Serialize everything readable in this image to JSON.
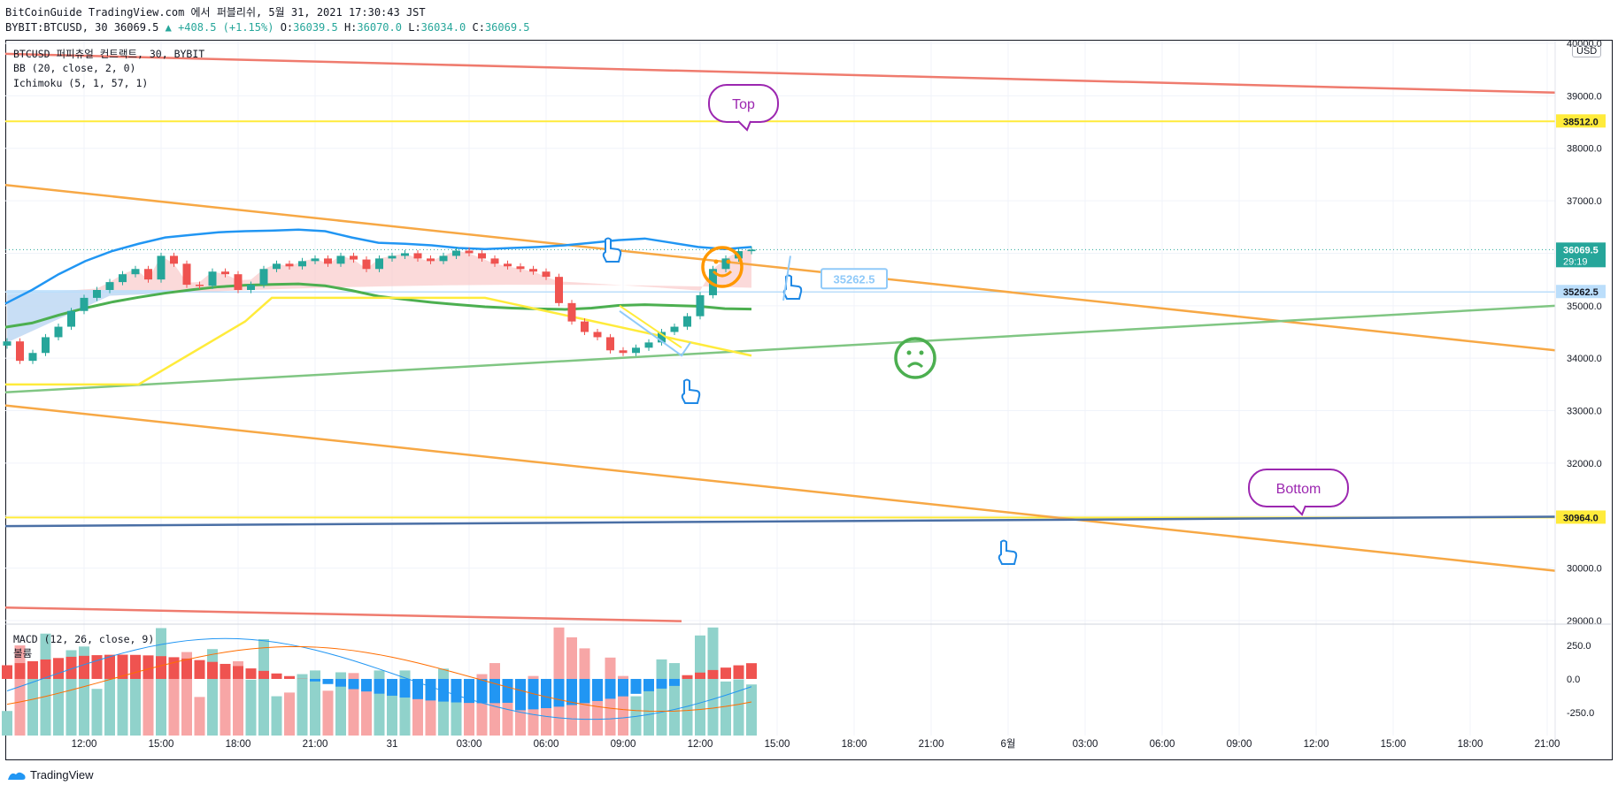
{
  "header": {
    "line1": "BitCoinGuide TradingView.com 에서 퍼블리쉬, 5월 31, 2021 17:30:43 JST",
    "symbol": "BYBIT:BTCUSD, 30 36069.5",
    "change": "▲ +408.5 (+1.15%)",
    "o_label": "O:",
    "o": "36039.5",
    "h_label": "H:",
    "h": "36070.0",
    "l_label": "L:",
    "l": "36034.0",
    "c_label": "C:",
    "c": "36069.5"
  },
  "legend": {
    "title": "BTCUSD 퍼피츄얼 컨트랙트, 30, BYBIT",
    "bb": "BB (20, close, 2, 0)",
    "ichimoku": "Ichimoku (5, 1, 57, 1)",
    "macd": "MACD (12, 26, close, 9)",
    "volume": "볼륨"
  },
  "currency": "USD",
  "footer": {
    "brand": "TradingView"
  },
  "annotations": {
    "top": "Top",
    "bottom": "Bottom",
    "box_price": "35262.5"
  },
  "colors": {
    "up": "#26a69a",
    "down": "#ef5350",
    "bb": "#2196f3",
    "red_line": "#ef7b6e",
    "orange_line": "#f7a845",
    "green_line": "#80c683",
    "yellow_line": "#ffeb3b",
    "navy_line": "#4a6fa5",
    "cloud": "#bbdefb",
    "cloud_red": "#f8bbbb"
  },
  "chart_data": {
    "type": "candlestick",
    "price_axis": {
      "ticks": [
        "29000.0",
        "30000.0",
        "31000.0",
        "32000.0",
        "33000.0",
        "34000.0",
        "35000.0",
        "36000.0",
        "37000.0",
        "38000.0",
        "39000.0",
        "40000.0"
      ],
      "range": [
        28950,
        40050
      ]
    },
    "price_labels": [
      {
        "value": 38512.0,
        "text": "38512.0",
        "bg": "#ffeb3b",
        "fg": "#131722"
      },
      {
        "value": 36069.5,
        "text": "36069.5",
        "sub": "29:19",
        "bg": "#26a69a",
        "fg": "#ffffff"
      },
      {
        "value": 35262.5,
        "text": "35262.5",
        "bg": "#bbdefb",
        "fg": "#131722"
      },
      {
        "value": 30964.0,
        "text": "30964.0",
        "bg": "#ffeb3b",
        "fg": "#131722"
      }
    ],
    "time_axis": {
      "labels": [
        "12:00",
        "15:00",
        "18:00",
        "21:00",
        "31",
        "03:00",
        "06:00",
        "09:00",
        "12:00",
        "15:00",
        "18:00",
        "21:00",
        "6월",
        "03:00",
        "06:00",
        "09:00",
        "12:00",
        "15:00",
        "18:00",
        "21:00"
      ],
      "first_label_bar": 6,
      "bars_per_label": 6
    },
    "candles_start": [
      34320,
      33950,
      34100,
      34400,
      34600
    ],
    "candles_mid": [
      35500,
      35950,
      35800,
      35400,
      35380,
      35650,
      35600,
      35300,
      35400,
      35700,
      35800
    ],
    "candles_tail": [
      35550,
      35050,
      34700,
      34500,
      34400,
      34150,
      34100,
      34200,
      34300,
      34500,
      34600,
      34800,
      35200,
      35700,
      35900,
      36039.5,
      36069.5
    ],
    "macd_axis": {
      "ticks": [
        "250.0",
        "0.0",
        "-250.0"
      ],
      "range": [
        -420,
        400
      ]
    },
    "volume_axis": {
      "range": [
        0,
        900
      ]
    },
    "bb": {
      "upper": [
        35040,
        35300,
        35600,
        35850,
        36040,
        36180,
        36300,
        36350,
        36400,
        36420,
        36430,
        36450,
        36420,
        36300,
        36200,
        36180,
        36150,
        36100,
        36080,
        36100,
        36120,
        36150,
        36200,
        36250,
        36280,
        36200,
        36120,
        36080,
        36120
      ],
      "lower": [
        34380,
        34280,
        34280,
        34300,
        34340,
        34380,
        34420,
        34500,
        34560,
        34600,
        34620,
        34620,
        34580,
        34520,
        34400,
        34300,
        34220,
        34180,
        34120,
        34050,
        34000,
        33950,
        33950,
        34000,
        34000,
        34050,
        34100,
        34050,
        33990
      ]
    },
    "trendlines": [
      {
        "name": "red-upper",
        "from": [
          0,
          39800
        ],
        "to": [
          1,
          39060
        ]
      },
      {
        "name": "orange-mid",
        "from": [
          0,
          37300
        ],
        "to": [
          1,
          34150
        ]
      },
      {
        "name": "orange-low",
        "from": [
          0,
          33100
        ],
        "to": [
          1,
          29950
        ]
      },
      {
        "name": "green-support",
        "from": [
          0,
          33350
        ],
        "to": [
          1,
          35000
        ]
      },
      {
        "name": "navy-bottom",
        "from": [
          0,
          30800
        ],
        "to": [
          1,
          30980
        ]
      }
    ],
    "horizontal_levels": [
      38512.0,
      35262.5,
      30964.0
    ]
  }
}
